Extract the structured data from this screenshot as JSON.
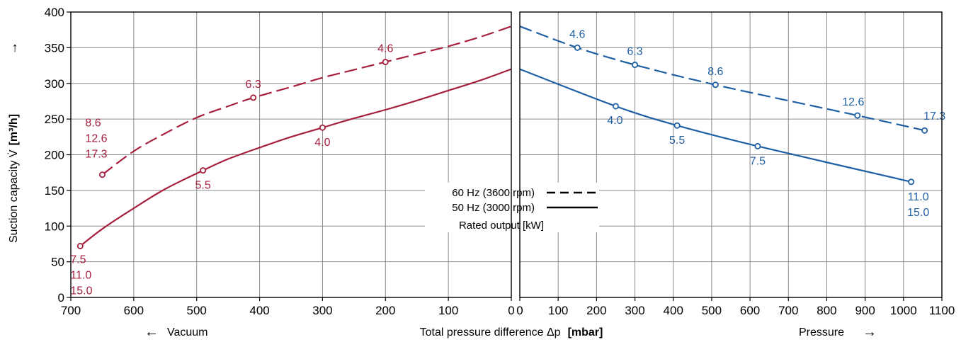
{
  "chart_data": {
    "type": "line",
    "ylabel": "Suction capacity V̇",
    "ylabel_unit": "[m³/h]",
    "xlabel": "Total pressure difference  Δp",
    "xlabel_unit": "[mbar]",
    "y_axis_arrow": "→",
    "ylim": [
      0,
      400
    ],
    "y_ticks": [
      0,
      50,
      100,
      150,
      200,
      250,
      300,
      350,
      400
    ],
    "grid": true,
    "colors": {
      "vacuum": "#a6203d",
      "pressure": "#1f5fa3",
      "grid": "#8a8a8a",
      "axis": "#000000"
    },
    "legend": {
      "entries": [
        {
          "label": "60 Hz (3600 rpm)",
          "style": "dashed"
        },
        {
          "label": "50 Hz (3000 rpm)",
          "style": "solid"
        }
      ],
      "note": "Rated output  [kW]"
    },
    "vacuum": {
      "direction_label": "Vacuum",
      "direction_arrow": "←",
      "x_ticks": [
        700,
        600,
        500,
        400,
        300,
        200,
        100,
        0
      ],
      "xlim": [
        700,
        0
      ],
      "series": [
        {
          "name": "60 Hz (3600 rpm)",
          "style": "dashed",
          "x": [
            650,
            600,
            550,
            500,
            450,
            410,
            350,
            300,
            250,
            200,
            150,
            100,
            50,
            0
          ],
          "y": [
            172,
            205,
            230,
            252,
            268,
            280,
            295,
            308,
            319,
            330,
            341,
            352,
            365,
            380
          ],
          "markers": [
            {
              "x": 650,
              "y": 172,
              "labels": [
                "8.6",
                "12.6",
                "17.3"
              ]
            },
            {
              "x": 410,
              "y": 280,
              "labels": [
                "6.3"
              ]
            },
            {
              "x": 200,
              "y": 330,
              "labels": [
                "4.6"
              ]
            }
          ]
        },
        {
          "name": "50 Hz (3000 rpm)",
          "style": "solid",
          "x": [
            685,
            650,
            600,
            550,
            490,
            450,
            400,
            350,
            300,
            250,
            200,
            150,
            100,
            50,
            0
          ],
          "y": [
            72,
            96,
            125,
            152,
            178,
            194,
            210,
            225,
            238,
            251,
            263,
            276,
            290,
            304,
            320
          ],
          "markers": [
            {
              "x": 685,
              "y": 72,
              "labels": [
                "7.5",
                "11.0",
                "15.0"
              ]
            },
            {
              "x": 490,
              "y": 178,
              "labels": [
                "5.5"
              ]
            },
            {
              "x": 300,
              "y": 238,
              "labels": [
                "4.0"
              ]
            }
          ]
        }
      ]
    },
    "pressure": {
      "direction_label": "Pressure",
      "direction_arrow": "→",
      "x_ticks": [
        0,
        100,
        200,
        300,
        400,
        500,
        600,
        700,
        800,
        900,
        1000,
        1100
      ],
      "xlim": [
        0,
        1100
      ],
      "series": [
        {
          "name": "60 Hz (3600 rpm)",
          "style": "dashed",
          "x": [
            0,
            150,
            300,
            510,
            880,
            1055
          ],
          "y": [
            380,
            350,
            326,
            298,
            255,
            234
          ],
          "markers": [
            {
              "x": 150,
              "y": 350,
              "labels": [
                "4.6"
              ]
            },
            {
              "x": 300,
              "y": 326,
              "labels": [
                "6.3"
              ]
            },
            {
              "x": 510,
              "y": 298,
              "labels": [
                "8.6"
              ]
            },
            {
              "x": 880,
              "y": 255,
              "labels": [
                "12.6"
              ]
            },
            {
              "x": 1055,
              "y": 234,
              "labels": [
                "17.3"
              ]
            }
          ]
        },
        {
          "name": "50 Hz (3000 rpm)",
          "style": "solid",
          "x": [
            0,
            250,
            410,
            620,
            1020
          ],
          "y": [
            320,
            268,
            241,
            212,
            162
          ],
          "markers": [
            {
              "x": 250,
              "y": 268,
              "labels": [
                "4.0"
              ]
            },
            {
              "x": 410,
              "y": 241,
              "labels": [
                "5.5"
              ]
            },
            {
              "x": 620,
              "y": 212,
              "labels": [
                "7.5"
              ]
            },
            {
              "x": 1020,
              "y": 162,
              "labels": [
                "11.0",
                "15.0"
              ]
            }
          ]
        }
      ]
    }
  }
}
